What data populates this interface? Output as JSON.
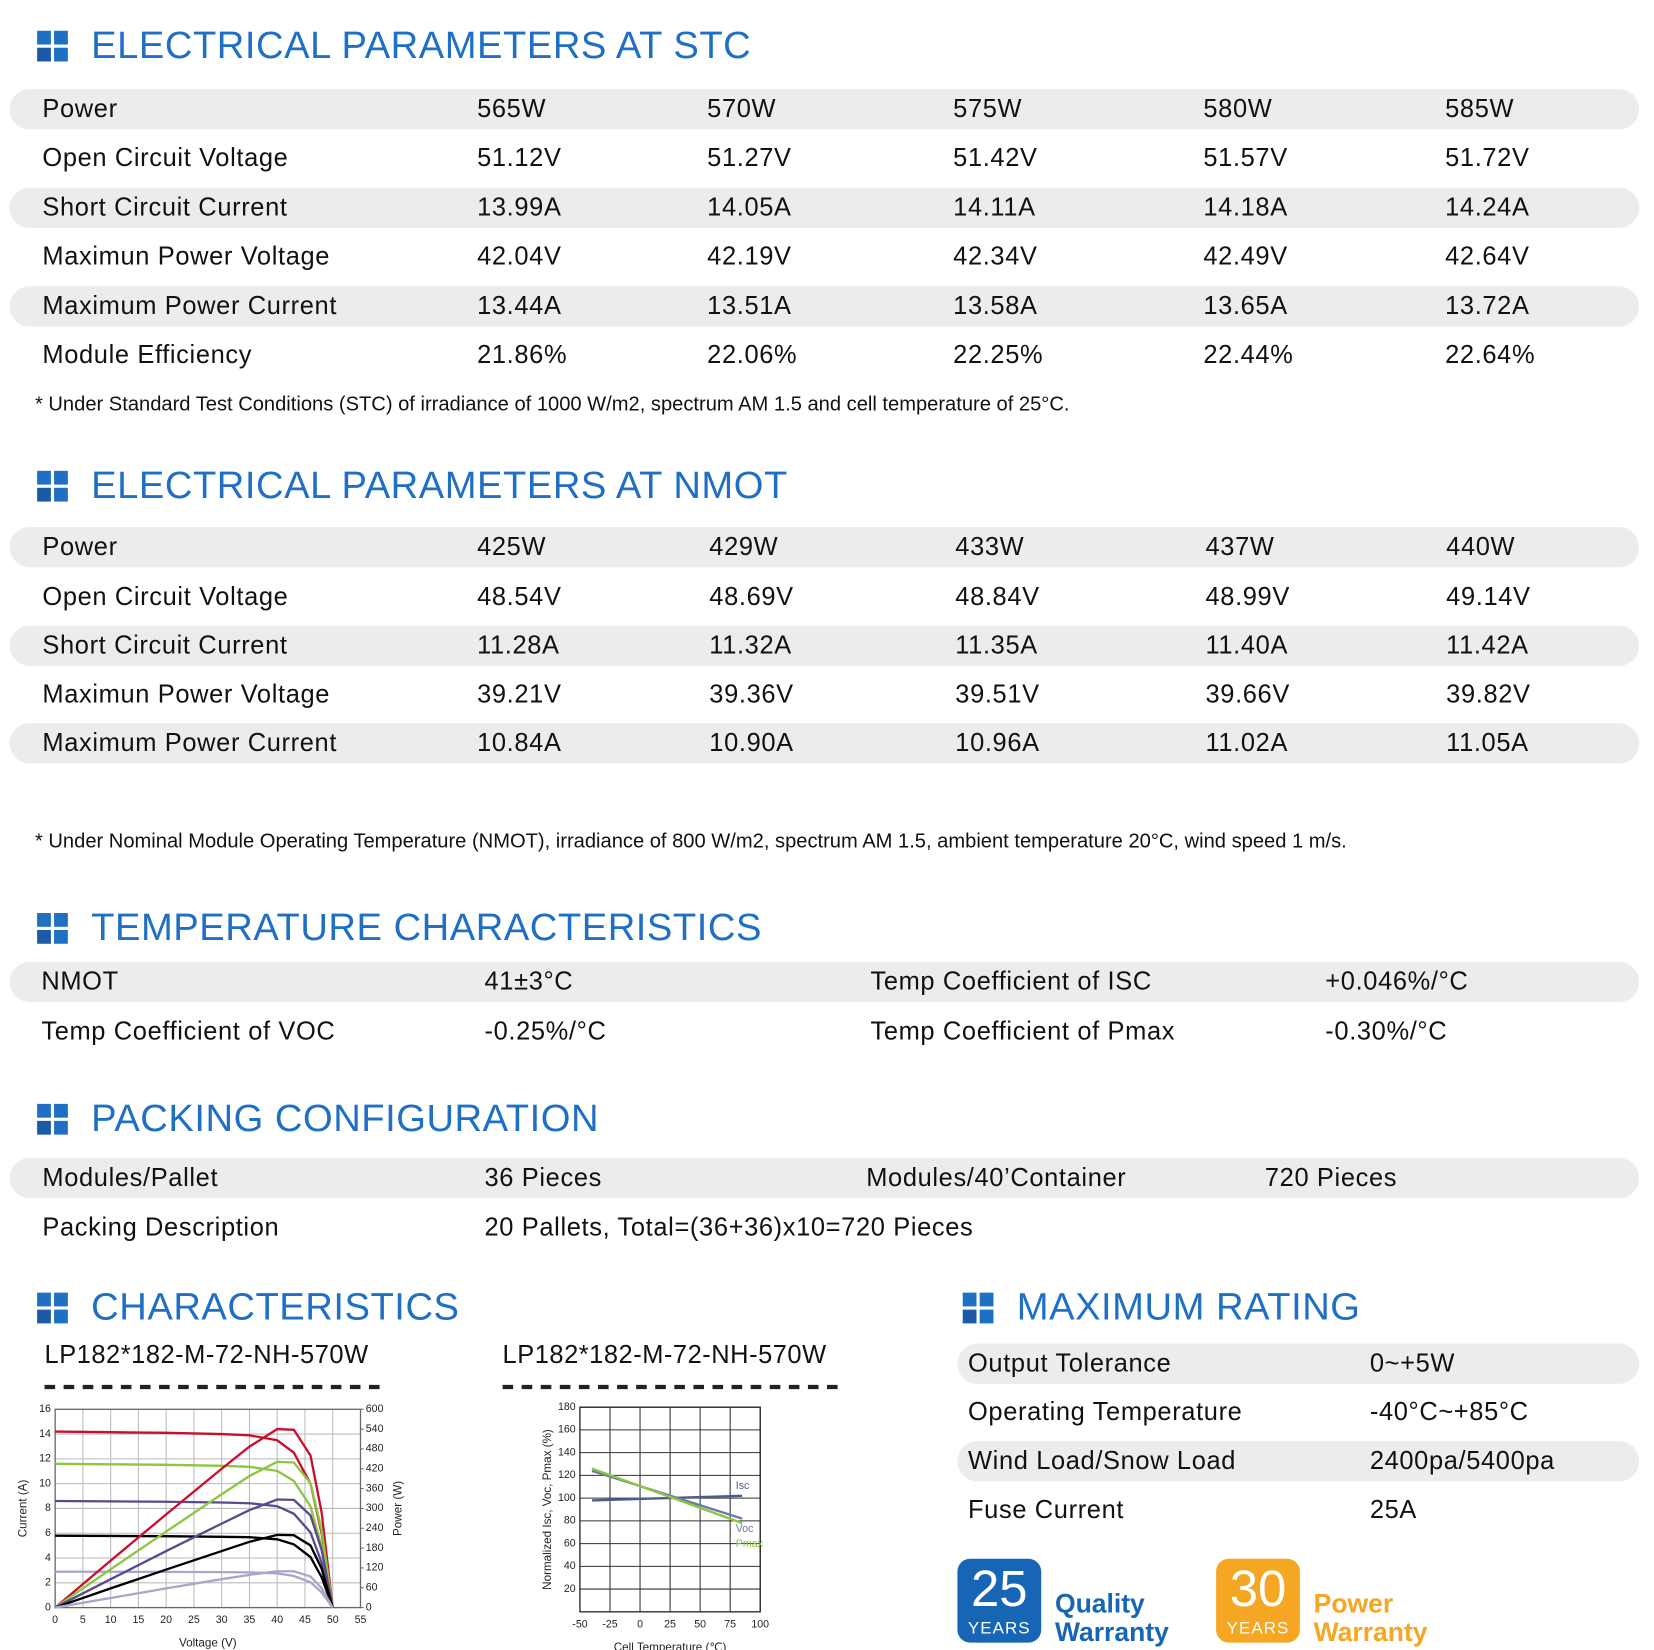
{
  "stc": {
    "title": "ELECTRICAL PARAMETERS AT STC",
    "rows": [
      [
        "Power",
        "565W",
        "570W",
        "575W",
        "580W",
        "585W"
      ],
      [
        "Open Circuit Voltage",
        "51.12V",
        "51.27V",
        "51.42V",
        "51.57V",
        "51.72V"
      ],
      [
        "Short Circuit Current",
        "13.99A",
        "14.05A",
        "14.11A",
        "14.18A",
        "14.24A"
      ],
      [
        "Maximun Power Voltage",
        "42.04V",
        "42.19V",
        "42.34V",
        "42.49V",
        "42.64V"
      ],
      [
        "Maximum Power Current",
        "13.44A",
        "13.51A",
        "13.58A",
        "13.65A",
        "13.72A"
      ],
      [
        "Module Efficiency",
        "21.86%",
        "22.06%",
        "22.25%",
        "22.44%",
        "22.64%"
      ]
    ],
    "note": "* Under Standard Test Conditions (STC) of irradiance of 1000 W/m2, spectrum AM 1.5 and cell temperature of 25°C."
  },
  "nmot": {
    "title": "ELECTRICAL PARAMETERS AT NMOT",
    "rows": [
      [
        "Power",
        "425W",
        "429W",
        "433W",
        "437W",
        "440W"
      ],
      [
        "Open Circuit Voltage",
        "48.54V",
        "48.69V",
        "48.84V",
        "48.99V",
        "49.14V"
      ],
      [
        "Short Circuit Current",
        "11.28A",
        "11.32A",
        "11.35A",
        "11.40A",
        "11.42A"
      ],
      [
        "Maximun Power Voltage",
        "39.21V",
        "39.36V",
        "39.51V",
        "39.66V",
        "39.82V"
      ],
      [
        "Maximum Power Current",
        "10.84A",
        "10.90A",
        "10.96A",
        "11.02A",
        "11.05A"
      ]
    ],
    "note": "* Under Nominal Module Operating Temperature (NMOT), irradiance of 800 W/m2, spectrum AM 1.5, ambient temperature 20°C, wind speed 1 m/s."
  },
  "temperature": {
    "title": "TEMPERATURE CHARACTERISTICS",
    "rows": [
      [
        "NMOT",
        "41±3°C",
        "Temp Coefficient of ISC",
        "+0.046%/°C"
      ],
      [
        "Temp Coefficient of VOC",
        "-0.25%/°C",
        "Temp Coefficient of Pmax",
        "-0.30%/°C"
      ]
    ]
  },
  "packing": {
    "title": "PACKING CONFIGURATION",
    "rows": [
      [
        "Modules/Pallet",
        "36 Pieces",
        "Modules/40’Container",
        "720 Pieces"
      ],
      [
        "Packing Description",
        "20 Pallets, Total=(36+36)x10=720 Pieces"
      ]
    ]
  },
  "characteristics": {
    "title": "CHARACTERISTICS"
  },
  "chart_data": [
    {
      "type": "line",
      "title": "LP182*182-M-72-NH-570W",
      "x_label": "Voltage (V)",
      "y_label": "Current (A)",
      "y2_label": "Power (W)",
      "x": [
        0,
        10,
        20,
        30,
        35,
        40,
        43,
        46,
        48,
        50
      ],
      "xlim": [
        0,
        55
      ],
      "xticks": [
        0,
        5,
        10,
        15,
        20,
        25,
        30,
        35,
        40,
        45,
        50,
        55
      ],
      "ylim": [
        0,
        16
      ],
      "yticks": [
        0,
        2,
        4,
        6,
        8,
        10,
        12,
        14,
        16
      ],
      "y2lim": [
        0,
        600
      ],
      "y2ticks": [
        0,
        60,
        120,
        180,
        240,
        300,
        360,
        420,
        480,
        540,
        600
      ],
      "grid": true,
      "series": [
        {
          "color": "#c8102e",
          "values": [
            14.2,
            14.15,
            14.1,
            14.0,
            13.9,
            13.5,
            12.5,
            10,
            6,
            0
          ]
        },
        {
          "color": "#8dc63f",
          "values": [
            11.6,
            11.56,
            11.52,
            11.44,
            11.36,
            11.03,
            10.21,
            8.17,
            4.9,
            0
          ]
        },
        {
          "color": "#5b4a8b",
          "values": [
            8.6,
            8.57,
            8.54,
            8.48,
            8.42,
            8.18,
            7.57,
            6.06,
            3.63,
            0
          ]
        },
        {
          "color": "#000000",
          "values": [
            5.8,
            5.78,
            5.76,
            5.71,
            5.68,
            5.51,
            5.1,
            4.08,
            2.45,
            0
          ]
        },
        {
          "color": "#a9a6c9",
          "values": [
            2.9,
            2.89,
            2.88,
            2.86,
            2.84,
            2.76,
            2.55,
            2.04,
            1.23,
            0
          ]
        },
        {
          "color": "#c8102e",
          "axis": "y2",
          "values": [
            0,
            142,
            282,
            420,
            487,
            540,
            538,
            460,
            288,
            0
          ]
        },
        {
          "color": "#8dc63f",
          "axis": "y2",
          "values": [
            0,
            116,
            230,
            343,
            398,
            441,
            439,
            376,
            235,
            0
          ]
        },
        {
          "color": "#5b4a8b",
          "axis": "y2",
          "values": [
            0,
            86,
            171,
            254,
            295,
            327,
            326,
            279,
            174,
            0
          ]
        },
        {
          "color": "#000000",
          "axis": "y2",
          "values": [
            0,
            58,
            115,
            171,
            199,
            220,
            219,
            188,
            118,
            0
          ]
        },
        {
          "color": "#a9a6c9",
          "axis": "y2",
          "values": [
            0,
            29,
            58,
            86,
            99,
            110,
            110,
            94,
            59,
            0
          ]
        }
      ]
    },
    {
      "type": "line",
      "title": "LP182*182-M-72-NH-570W",
      "x_label": "Cell Temperature (℃)",
      "y_label": "Normalized Isc, Voc, Pmax (%)",
      "x": [
        -40,
        85
      ],
      "xlim": [
        -50,
        100
      ],
      "xticks": [
        -50,
        -25,
        0,
        25,
        50,
        75,
        100
      ],
      "ylim": [
        0,
        180
      ],
      "yticks": [
        20,
        40,
        60,
        80,
        100,
        120,
        140,
        160,
        180
      ],
      "grid": true,
      "series": [
        {
          "name": "Isc",
          "color": "#4b5d8f",
          "values": [
            98,
            102
          ]
        },
        {
          "name": "Voc",
          "color": "#6b7aa8",
          "values": [
            124,
            82
          ]
        },
        {
          "name": "Pmax",
          "color": "#8dc63f",
          "values": [
            126,
            78
          ]
        }
      ]
    }
  ],
  "maximum_rating": {
    "title": "MAXIMUM RATING",
    "rows": [
      [
        "Output Tolerance",
        "0~+5W"
      ],
      [
        "Operating Temperature",
        "-40°C~+85°C"
      ],
      [
        "Wind Load/Snow Load",
        "2400pa/5400pa"
      ],
      [
        "Fuse Current",
        "25A"
      ]
    ]
  },
  "warranty": [
    {
      "number": "25",
      "unit": "YEARS",
      "label": [
        "Quality",
        "Warranty"
      ]
    },
    {
      "number": "30",
      "unit": "YEARS",
      "label": [
        "Power",
        "Warranty"
      ]
    }
  ]
}
